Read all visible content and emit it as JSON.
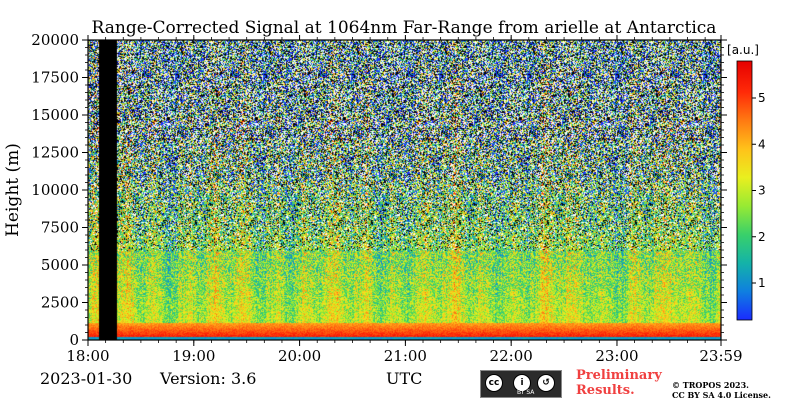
{
  "chart_data": {
    "type": "heatmap",
    "title": "Range-Corrected Signal at 1064nm Far-Range from arielle at Antarctica",
    "ylabel": "Height (m)",
    "xlabel": "UTC",
    "ylim": [
      0,
      20000
    ],
    "xlim": [
      "18:00",
      "23:59"
    ],
    "x_ticks": [
      "18:00",
      "19:00",
      "20:00",
      "21:00",
      "22:00",
      "23:00",
      "23:59"
    ],
    "y_ticks": [
      "0",
      "2500",
      "5000",
      "7500",
      "10000",
      "12500",
      "15000",
      "17500",
      "20000"
    ],
    "colorbar": {
      "label": "[a.u.]",
      "ticks": [
        "1",
        "2",
        "3",
        "4",
        "5"
      ],
      "range": [
        0.2,
        5.8
      ],
      "colormap": [
        "#1a2bff",
        "#0f7fe0",
        "#14b3a8",
        "#39d06a",
        "#97ea33",
        "#e9ef1f",
        "#ffc21a",
        "#ff7a12",
        "#ff2a08",
        "#e60000"
      ]
    },
    "no_data_intervals_utc": [
      [
        "18:06",
        "18:16"
      ]
    ],
    "boundary_layer": {
      "top_height_m": 1200,
      "peak_signal": 5.6,
      "note": "strongest signal in lowest ~1500 m; signal decreases with height and becomes noisy above ~5000 m"
    }
  },
  "footer": {
    "date": "2023-01-30",
    "version": "Version: 3.6",
    "cc_badge_label": "BY SA",
    "preliminary": "Preliminary Results.",
    "copyright_line1": "© TROPOS 2023.",
    "copyright_line2": "CC BY SA 4.0 License."
  }
}
